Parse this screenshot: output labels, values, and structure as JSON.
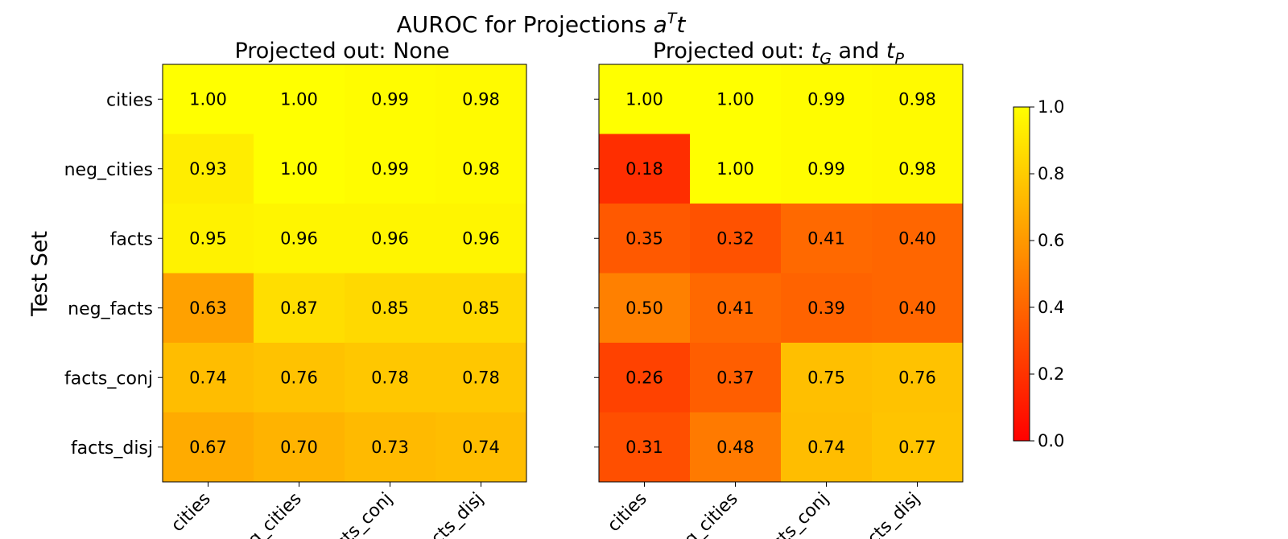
{
  "chart_data": {
    "type": "heatmap",
    "title_main": "AUROC for Projections ",
    "title_math_a": "a",
    "title_math_sup": "T",
    "title_math_t": "t",
    "ylabel": "Test Set",
    "rows": [
      "cities",
      "neg_cities",
      "facts",
      "neg_facts",
      "facts_conj",
      "facts_disj"
    ],
    "columns": [
      "cities",
      "neg_cities",
      "facts_conj",
      "facts_disj"
    ],
    "colormap": {
      "name": "autumn",
      "low": "#ff0000",
      "high": "#ffff00"
    },
    "colorbar": {
      "range": [
        0.0,
        1.0
      ],
      "ticks": [
        "0.0",
        "0.2",
        "0.4",
        "0.6",
        "0.8",
        "1.0"
      ]
    },
    "panels": [
      {
        "subtitle": "Projected out: None",
        "values": [
          [
            1.0,
            1.0,
            0.99,
            0.98
          ],
          [
            0.93,
            1.0,
            0.99,
            0.98
          ],
          [
            0.95,
            0.96,
            0.96,
            0.96
          ],
          [
            0.63,
            0.87,
            0.85,
            0.85
          ],
          [
            0.74,
            0.76,
            0.78,
            0.78
          ],
          [
            0.67,
            0.7,
            0.73,
            0.74
          ]
        ]
      },
      {
        "subtitle_prefix": "Projected out: ",
        "subtitle_t1": "t",
        "subtitle_sub1": "G",
        "subtitle_and": " and ",
        "subtitle_t2": "t",
        "subtitle_sub2": "P",
        "values": [
          [
            1.0,
            1.0,
            0.99,
            0.98
          ],
          [
            0.18,
            1.0,
            0.99,
            0.98
          ],
          [
            0.35,
            0.32,
            0.41,
            0.4
          ],
          [
            0.5,
            0.41,
            0.39,
            0.4
          ],
          [
            0.26,
            0.37,
            0.75,
            0.76
          ],
          [
            0.31,
            0.48,
            0.74,
            0.77
          ]
        ]
      }
    ]
  }
}
